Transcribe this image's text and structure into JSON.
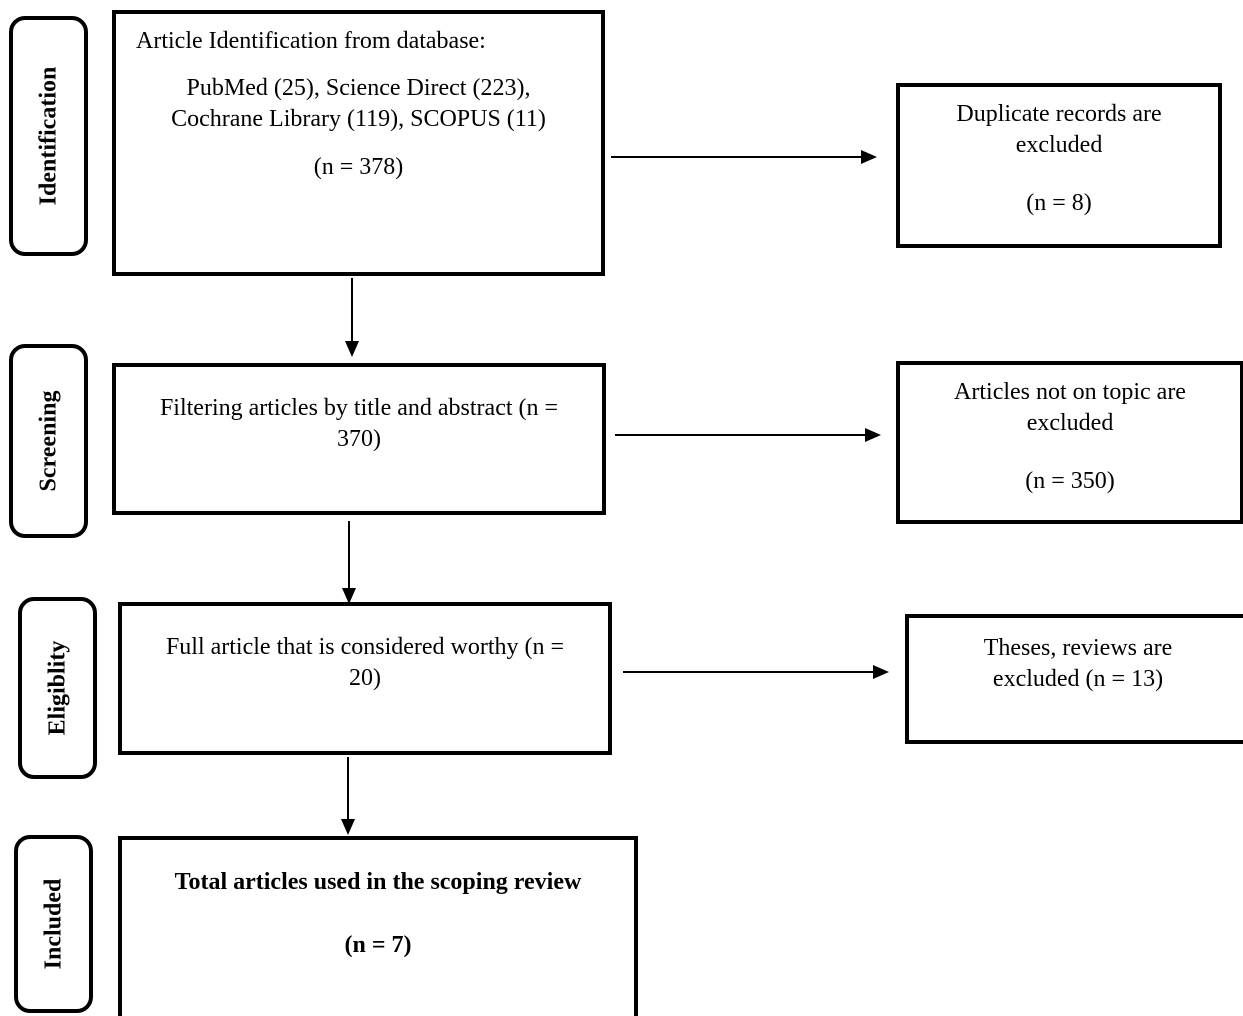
{
  "stages": {
    "identification": "Identification",
    "screening": "Screening",
    "eligibility": "Eligiblity",
    "included": "Included"
  },
  "identification_box": {
    "line1": "Article Identification from database:",
    "line2": "PubMed (25), Science Direct (223),",
    "line3": "Cochrane Library (119), SCOPUS (11)",
    "count": "(n = 378)"
  },
  "duplicates_box": {
    "line1": "Duplicate records are",
    "line2": "excluded",
    "count": "(n = 8)"
  },
  "screening_box": {
    "line1": "Filtering articles by title and abstract (n =",
    "line2": "370)"
  },
  "off_topic_box": {
    "line1": "Articles not on topic are",
    "line2": "excluded",
    "count": "(n = 350)"
  },
  "eligibility_box": {
    "line1": "Full article that is considered worthy (n =",
    "line2": "20)"
  },
  "theses_box": {
    "line1": "Theses, reviews are",
    "line2": "excluded (n = 13)"
  },
  "included_box": {
    "line1": "Total articles used in the scoping review",
    "count": "(n = 7)"
  }
}
